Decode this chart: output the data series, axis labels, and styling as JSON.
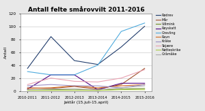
{
  "title": "Antall felte smårovvilt 2011-2016",
  "xlabel": "Jaktår (15.juli-15.april)",
  "ylabel": "Antall",
  "seasons": [
    "2010-2011",
    "2011-2012",
    "2012-2013",
    "2013-2014",
    "2014-2015",
    "2015-2016"
  ],
  "series": {
    "Rødrev": [
      35,
      84,
      47,
      41,
      68,
      100
    ],
    "Mår": [
      5,
      4,
      7,
      3,
      10,
      35
    ],
    "Villmink": [
      2,
      2,
      3,
      1,
      3,
      4
    ],
    "Røyskatt": [
      3,
      25,
      25,
      2,
      12,
      12
    ],
    "Grevling": [
      30,
      25,
      25,
      40,
      92,
      105
    ],
    "Ravn": [
      4,
      5,
      8,
      5,
      8,
      10
    ],
    "Kråke": [
      8,
      10,
      8,
      8,
      5,
      10
    ],
    "Skjære": [
      10,
      20,
      15,
      14,
      20,
      33
    ],
    "Nøtteskrike": [
      1,
      1,
      1,
      1,
      2,
      2
    ],
    "Gråmåke": [
      2,
      3,
      3,
      2,
      5,
      8
    ]
  },
  "colors": {
    "Rødrev": "#1F3B6B",
    "Mår": "#A0522D",
    "Villmink": "#6B8E23",
    "Røyskatt": "#4B0080",
    "Grevling": "#4DAADD",
    "Ravn": "#D2691E",
    "Kråke": "#9B8EC4",
    "Skjære": "#E8A0B0",
    "Nøtteskrike": "#AACC44",
    "Gråmåke": "#AAAAAA"
  },
  "ylim": [
    0,
    120
  ],
  "yticks": [
    0,
    20,
    40,
    60,
    80,
    100,
    120
  ],
  "fig_bg": "#E8E8E8",
  "plot_bg": "#FFFFFF"
}
